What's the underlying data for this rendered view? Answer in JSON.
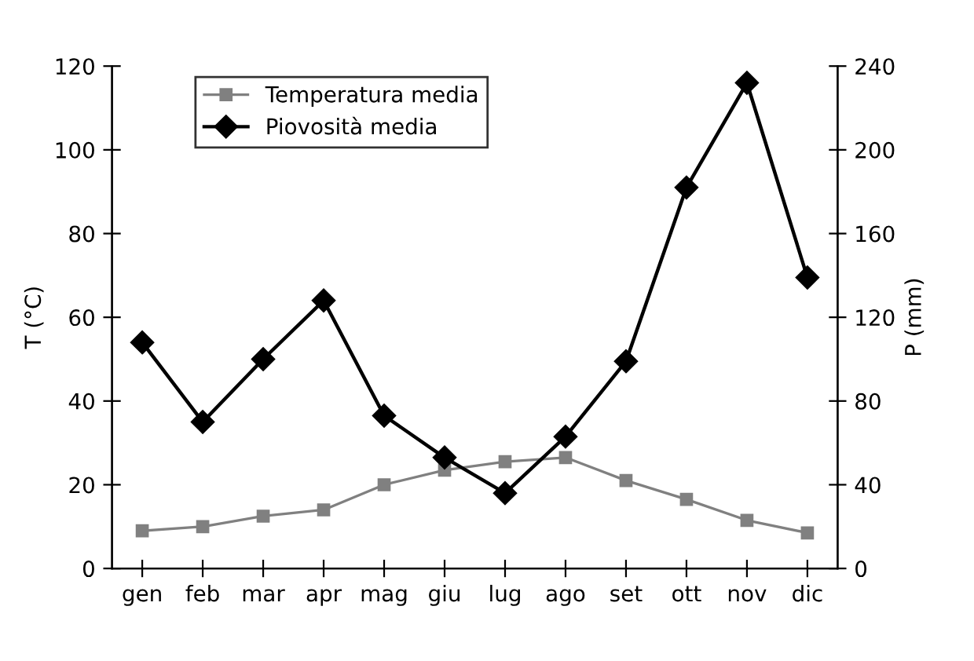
{
  "chart_data": {
    "type": "line",
    "ylabel": "T (°C)",
    "y2label": "P (mm)",
    "categories": [
      "gen",
      "feb",
      "mar",
      "apr",
      "mag",
      "giu",
      "lug",
      "ago",
      "set",
      "ott",
      "nov",
      "dic"
    ],
    "series": [
      {
        "name": "Temperatura media",
        "color": "#808080",
        "marker": "square",
        "values": [
          9,
          10,
          12.5,
          14,
          20,
          23.5,
          25.5,
          26.5,
          21,
          16.5,
          11.5,
          8.5
        ]
      },
      {
        "name": "Piovosità media",
        "color": "#000000",
        "marker": "diamond",
        "axis": "y2",
        "values": [
          108,
          70,
          100,
          128,
          73,
          53,
          36,
          63,
          99,
          182,
          232,
          139
        ]
      }
    ],
    "ylim": [
      0,
      120
    ],
    "yticks": [
      0,
      20,
      40,
      60,
      80,
      100,
      120
    ],
    "y2lim": [
      0,
      240
    ],
    "y2ticks": [
      0,
      40,
      80,
      120,
      160,
      200,
      240
    ],
    "grid": false,
    "legend": "top left",
    "line_style": "solid"
  }
}
